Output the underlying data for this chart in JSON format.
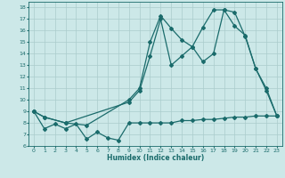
{
  "title": "",
  "xlabel": "Humidex (Indice chaleur)",
  "bg_color": "#cce8e8",
  "grid_color": "#aacccc",
  "line_color": "#1a6b6b",
  "xlim": [
    -0.5,
    23.5
  ],
  "ylim": [
    6,
    18.5
  ],
  "xticks": [
    0,
    1,
    2,
    3,
    4,
    5,
    6,
    7,
    8,
    9,
    10,
    11,
    12,
    13,
    14,
    15,
    16,
    17,
    18,
    19,
    20,
    21,
    22,
    23
  ],
  "yticks": [
    6,
    7,
    8,
    9,
    10,
    11,
    12,
    13,
    14,
    15,
    16,
    17,
    18
  ],
  "line1_x": [
    0,
    1,
    2,
    3,
    4,
    5,
    6,
    7,
    8,
    9,
    10,
    11,
    12,
    13,
    14,
    15,
    16,
    17,
    18,
    19,
    20,
    21,
    22,
    23
  ],
  "line1_y": [
    9.0,
    7.5,
    7.9,
    7.5,
    7.9,
    6.6,
    7.2,
    6.7,
    6.5,
    8.0,
    8.0,
    8.0,
    8.0,
    8.0,
    8.2,
    8.2,
    8.3,
    8.3,
    8.4,
    8.5,
    8.5,
    8.6,
    8.6,
    8.6
  ],
  "line2_x": [
    0,
    1,
    3,
    5,
    9,
    10,
    11,
    12,
    13,
    14,
    15,
    16,
    17,
    18,
    19,
    20,
    21,
    22,
    23
  ],
  "line2_y": [
    9.0,
    8.5,
    8.0,
    7.8,
    10.0,
    11.0,
    15.0,
    17.3,
    16.2,
    15.2,
    14.6,
    13.3,
    14.0,
    17.8,
    17.6,
    15.5,
    12.7,
    10.8,
    8.6
  ],
  "line3_x": [
    0,
    1,
    3,
    9,
    10,
    11,
    12,
    13,
    14,
    15,
    16,
    17,
    18,
    19,
    20,
    21,
    22,
    23
  ],
  "line3_y": [
    9.0,
    8.5,
    8.0,
    9.8,
    10.8,
    13.8,
    17.0,
    13.0,
    13.8,
    14.6,
    16.3,
    17.8,
    17.8,
    16.4,
    15.6,
    12.7,
    11.0,
    8.6
  ]
}
